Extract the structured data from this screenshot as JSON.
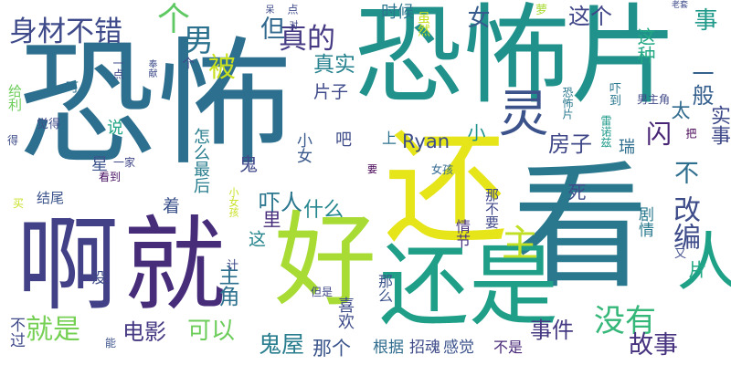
{
  "words": [
    {
      "text": "恐怖片",
      "color": "#21918c"
    },
    {
      "text": "恐怖",
      "color": "#2d6f8e"
    },
    {
      "text": "看",
      "color": "#2a788e"
    },
    {
      "text": "还",
      "color": "#e6e51a"
    },
    {
      "text": "就",
      "color": "#472c7a"
    },
    {
      "text": "啊",
      "color": "#424086"
    },
    {
      "text": "好",
      "color": "#a8db34"
    },
    {
      "text": "还是",
      "color": "#1f9f88"
    },
    {
      "text": "灵",
      "color": "#3b528b"
    },
    {
      "text": "人",
      "color": "#1fa187"
    },
    {
      "text": "身材不错",
      "color": "#3e4a89"
    },
    {
      "text": "真的",
      "color": "#443983"
    },
    {
      "text": "被",
      "color": "#c8e020"
    },
    {
      "text": "个",
      "color": "#5ec962"
    },
    {
      "text": "男",
      "color": "#2c728e"
    },
    {
      "text": "但",
      "color": "#31688e"
    },
    {
      "text": "这个",
      "color": "#404688"
    },
    {
      "text": "女",
      "color": "#365c8d"
    },
    {
      "text": "真实",
      "color": "#26828e"
    },
    {
      "text": "片子",
      "color": "#3e4989"
    },
    {
      "text": "房子",
      "color": "#3f4788"
    },
    {
      "text": "闪",
      "color": "#482475"
    },
    {
      "text": "不",
      "color": "#2e6e8e"
    },
    {
      "text": "一般",
      "color": "#355f8d"
    },
    {
      "text": "事",
      "color": "#1f9a8a"
    },
    {
      "text": "改编",
      "color": "#3e4c8a"
    },
    {
      "text": "主",
      "color": "#c0df25"
    },
    {
      "text": "没有",
      "color": "#35b779"
    },
    {
      "text": "故事",
      "color": "#46327e"
    },
    {
      "text": "事件",
      "color": "#453781"
    },
    {
      "text": "电影",
      "color": "#453882"
    },
    {
      "text": "可以",
      "color": "#6ccd5a"
    },
    {
      "text": "就是",
      "color": "#75d054"
    },
    {
      "text": "鬼屋",
      "color": "#287d8e"
    },
    {
      "text": "那个",
      "color": "#3a548c"
    },
    {
      "text": "根据",
      "color": "#2f6c8e"
    },
    {
      "text": "招魂",
      "color": "#3e4a89"
    },
    {
      "text": "感觉",
      "color": "#3b528b"
    },
    {
      "text": "不是",
      "color": "#482878"
    },
    {
      "text": "什么",
      "color": "#24868e"
    },
    {
      "text": "吓人",
      "color": "#2a768e"
    },
    {
      "text": "主角",
      "color": "#2d708e"
    },
    {
      "text": "Ryan",
      "color": "#3d4d8a"
    },
    {
      "text": "情节",
      "color": "#46327e"
    },
    {
      "text": "剧情",
      "color": "#29798e"
    },
    {
      "text": "时候",
      "color": "#2b758e"
    },
    {
      "text": "虽然",
      "color": "#c8e020"
    },
    {
      "text": "这种",
      "color": "#22a884"
    },
    {
      "text": "实事",
      "color": "#3e4989"
    },
    {
      "text": "小女",
      "color": "#38588c"
    },
    {
      "text": "小",
      "color": "#20928c"
    },
    {
      "text": "说",
      "color": "#20a486"
    },
    {
      "text": "鬼",
      "color": "#3f4889"
    },
    {
      "text": "吧",
      "color": "#3e4c8a"
    },
    {
      "text": "上",
      "color": "#2c728e"
    },
    {
      "text": "着",
      "color": "#3b528b"
    },
    {
      "text": "里",
      "color": "#472d7b"
    },
    {
      "text": "这",
      "color": "#25858e"
    },
    {
      "text": "瑞",
      "color": "#2e6e8e"
    },
    {
      "text": "太",
      "color": "#306a8e"
    },
    {
      "text": "片",
      "color": "#22a884"
    },
    {
      "text": "男主角",
      "color": "#3f4889"
    },
    {
      "text": "雷诺兹",
      "color": "#1f9a8a"
    },
    {
      "text": "恐怖片",
      "color": "#2a788e"
    },
    {
      "text": "星",
      "color": "#3b528b"
    },
    {
      "text": "看到",
      "color": "#471063"
    },
    {
      "text": "结尾",
      "color": "#3a538b"
    },
    {
      "text": "给利",
      "color": "#6ccd5a"
    },
    {
      "text": "觉得",
      "color": "#3e4a89"
    },
    {
      "text": "得",
      "color": "#3e4c8a"
    },
    {
      "text": "一家",
      "color": "#3f4788"
    },
    {
      "text": "怎么最后",
      "color": "#287d8e"
    },
    {
      "text": "女孩",
      "color": "#31688e"
    },
    {
      "text": "要",
      "color": "#440154"
    },
    {
      "text": "那不要",
      "color": "#3f4889"
    },
    {
      "text": "喜欢",
      "color": "#3e4c8a"
    },
    {
      "text": "那么",
      "color": "#3b528b"
    },
    {
      "text": "但是",
      "color": "#3f4889"
    },
    {
      "text": "小女孩",
      "color": "#c8e020"
    },
    {
      "text": "计",
      "color": "#3e4a89"
    },
    {
      "text": "不过",
      "color": "#3e4a89"
    },
    {
      "text": "没",
      "color": "#3e4c8a"
    },
    {
      "text": "能",
      "color": "#3b528b"
    },
    {
      "text": "又",
      "color": "#3e4c8a"
    },
    {
      "text": "一点",
      "color": "#3f4889"
    },
    {
      "text": "奉献",
      "color": "#3e4c8a"
    },
    {
      "text": "个",
      "color": "#3e4a89"
    },
    {
      "text": "呆",
      "color": "#3e4c8a"
    },
    {
      "text": "可",
      "color": "#2c728e"
    },
    {
      "text": "点",
      "color": "#3e4c8a"
    },
    {
      "text": "对",
      "color": "#3f4889"
    },
    {
      "text": "萝",
      "color": "#a8db34"
    },
    {
      "text": "老套",
      "color": "#3e4c8a"
    },
    {
      "text": "死",
      "color": "#3e4c8a"
    },
    {
      "text": "吓到",
      "color": "#2a788e"
    },
    {
      "text": "把",
      "color": "#440154"
    },
    {
      "text": "买",
      "color": "#c8e020"
    }
  ]
}
